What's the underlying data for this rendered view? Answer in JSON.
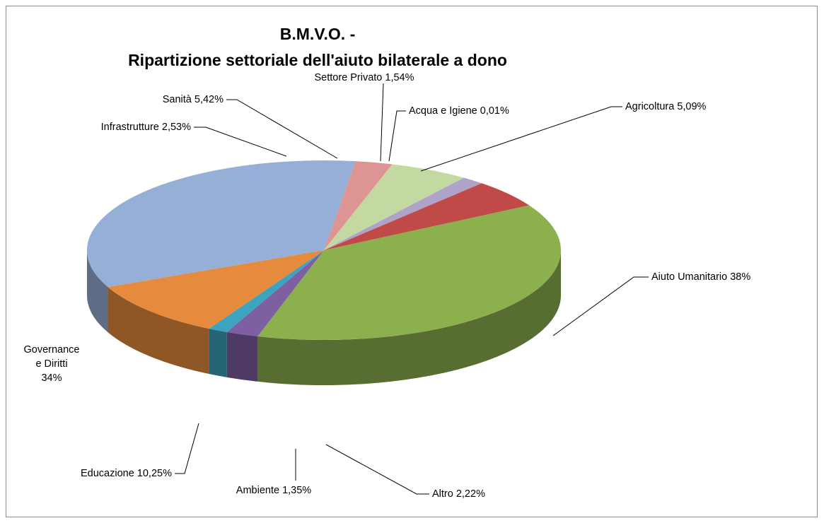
{
  "chart_data": {
    "type": "pie",
    "title_lines": [
      "B.M.V.O. -",
      "Ripartizione settoriale dell'aiuto bilaterale a dono"
    ],
    "slices": [
      {
        "name": "Aiuto Umanitario",
        "value": 38,
        "label": "Aiuto Umanitario 38%",
        "color": "#8db04f"
      },
      {
        "name": "Altro",
        "value": 2.22,
        "label": "Altro 2,22%",
        "color": "#7d5fa2"
      },
      {
        "name": "Ambiente",
        "value": 1.35,
        "label": "Ambiente 1,35%",
        "color": "#3ea3be"
      },
      {
        "name": "Educazione",
        "value": 10.25,
        "label": "Educazione 10,25%",
        "color": "#e68b3d"
      },
      {
        "name": "Governance e Diritti",
        "value": 34,
        "label_lines": [
          "Governance",
          "e Diritti",
          "34%"
        ],
        "color": "#95afd6"
      },
      {
        "name": "Infrastrutture",
        "value": 2.53,
        "label": "Infrastrutture 2,53%",
        "color": "#dc9593"
      },
      {
        "name": "Sanità",
        "value": 5.42,
        "label": "Sanità 5,42%",
        "color": "#c4d8a1"
      },
      {
        "name": "Settore Privato",
        "value": 1.54,
        "label": "Settore Privato 1,54%",
        "color": "#b0a3ca"
      },
      {
        "name": "Acqua e Igiene",
        "value": 0.01,
        "label": "Acqua e Igiene 0,01%",
        "color": "#5b86c2"
      },
      {
        "name": "Agricoltura",
        "value": 5.09,
        "label": "Agricoltura 5,09%",
        "color": "#c04a47"
      }
    ]
  }
}
